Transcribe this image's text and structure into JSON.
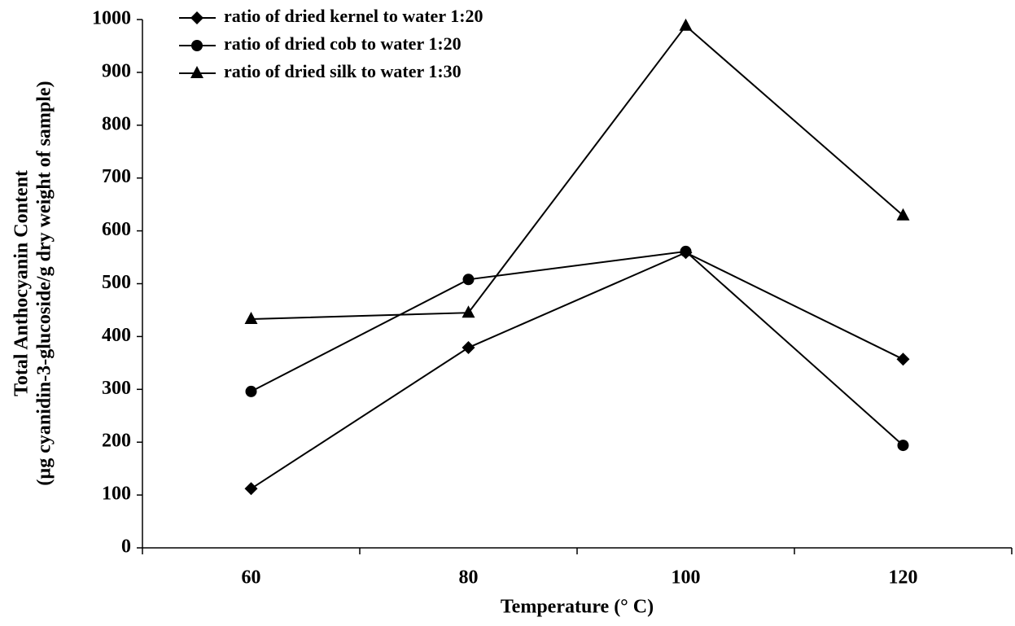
{
  "chart_data": {
    "type": "line",
    "x_label": "Temperature (° C)",
    "y_label": [
      "Total Anthocyanin Content",
      "(µg cyanidin-3-glucoside/g dry weight of sample)"
    ],
    "categories": [
      "60",
      "80",
      "100",
      "120"
    ],
    "series": [
      {
        "name": "ratio of dried kernel to water 1:20",
        "color": "#000000",
        "marker": "diamond",
        "values": [
          112,
          379,
          559,
          357
        ]
      },
      {
        "name": "ratio of dried cob to water 1:20",
        "color": "#000000",
        "marker": "circle",
        "values": [
          296,
          508,
          561,
          194
        ]
      },
      {
        "name": "ratio of dried silk to water 1:30",
        "color": "#000000",
        "marker": "triangle",
        "values": [
          433,
          445,
          988,
          629
        ]
      }
    ],
    "ylim": [
      0,
      1000
    ],
    "yticks": [
      0,
      100,
      200,
      300,
      400,
      500,
      600,
      700,
      800,
      900,
      1000
    ],
    "grid": false,
    "legend": "top-left"
  }
}
